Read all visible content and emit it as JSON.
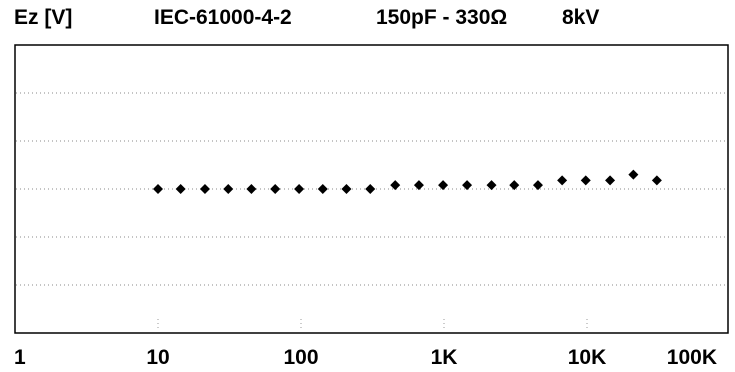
{
  "chart_data": {
    "type": "scatter",
    "title": "IEC-61000-4-2",
    "subtitle": "150pF - 330Ω",
    "voltage": "8kV",
    "ylabel": "Ez [V]",
    "xlabel": "",
    "xscale": "log",
    "xlim": [
      1,
      100000
    ],
    "xticks": [
      1,
      10,
      100,
      1000,
      10000,
      100000
    ],
    "xtick_labels": [
      "1",
      "10",
      "100",
      "1K",
      "10K",
      "100K"
    ],
    "ylim": [
      0,
      6
    ],
    "ytick_labels": [],
    "grid": "horizontal dotted",
    "marker": "diamond",
    "color": "#000000",
    "series": [
      {
        "x": [
          10,
          14.4,
          21.3,
          31,
          45,
          66,
          97,
          142,
          208,
          305,
          456,
          668,
          985,
          1450,
          2150,
          3100,
          4540,
          6700,
          9800,
          14500,
          21100,
          30800
        ],
        "y": [
          3.0,
          3.0,
          3.0,
          3.0,
          3.0,
          3.0,
          3.0,
          3.0,
          3.0,
          3.0,
          3.08,
          3.08,
          3.08,
          3.08,
          3.08,
          3.08,
          3.08,
          3.18,
          3.18,
          3.18,
          3.3,
          3.18
        ]
      }
    ]
  }
}
